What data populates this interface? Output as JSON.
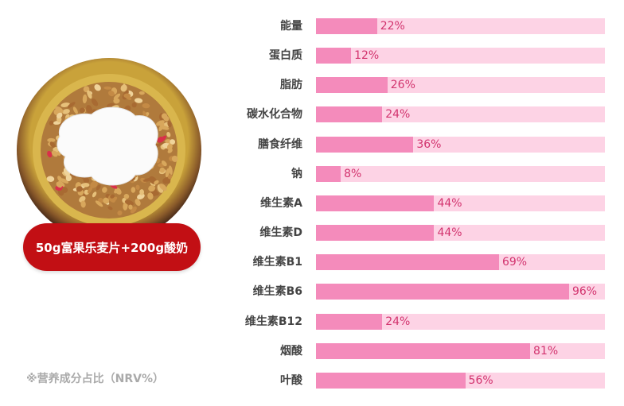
{
  "caption": "50g富果乐麦片+200g酸奶",
  "footnote": "※营养成分占比（NRV%）",
  "colors": {
    "fill": "#f48bbb",
    "track": "#fdd3e5",
    "value_text": "#d2336e",
    "pill": "#c20f14"
  },
  "chart_data": {
    "type": "bar",
    "orientation": "horizontal",
    "categories": [
      "能量",
      "蛋白质",
      "脂肪",
      "碳水化合物",
      "膳食纤维",
      "钠",
      "维生素A",
      "维生素D",
      "维生素B1",
      "维生素B6",
      "维生素B12",
      "烟酸",
      "叶酸"
    ],
    "values": [
      22,
      12,
      26,
      24,
      36,
      8,
      44,
      44,
      69,
      96,
      24,
      81,
      56
    ],
    "labels": [
      "22%",
      "12%",
      "26%",
      "24%",
      "36%",
      "8%",
      "44%",
      "44%",
      "69%",
      "96%",
      "24%",
      "81%",
      "56%"
    ],
    "unit": "%"
  }
}
